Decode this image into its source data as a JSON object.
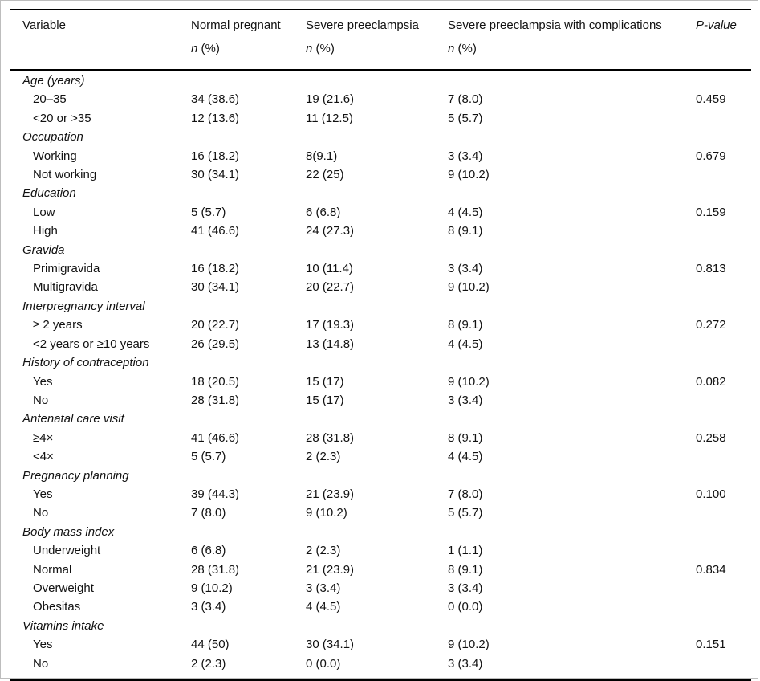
{
  "table": {
    "headers": [
      "Variable",
      "Normal pregnant",
      "Severe preeclampsia",
      "Severe preeclampsia with complications",
      "P-value"
    ],
    "subheader": {
      "n": "n",
      "pct": " (%)"
    },
    "groups": [
      {
        "label": "Age (years)",
        "rows": [
          {
            "label": "20–35",
            "normal": "34 (38.6)",
            "severe": "19 (21.6)",
            "comp": "7 (8.0)",
            "p": "0.459"
          },
          {
            "label": "<20 or >35",
            "normal": "12 (13.6)",
            "severe": "11 (12.5)",
            "comp": "5 (5.7)",
            "p": ""
          }
        ]
      },
      {
        "label": "Occupation",
        "rows": [
          {
            "label": "Working",
            "normal": "16 (18.2)",
            "severe": "8(9.1)",
            "comp": "3 (3.4)",
            "p": "0.679"
          },
          {
            "label": "Not working",
            "normal": "30 (34.1)",
            "severe": "22 (25)",
            "comp": "9 (10.2)",
            "p": ""
          }
        ]
      },
      {
        "label": "Education",
        "rows": [
          {
            "label": "Low",
            "normal": "5 (5.7)",
            "severe": "6 (6.8)",
            "comp": "4 (4.5)",
            "p": "0.159"
          },
          {
            "label": "High",
            "normal": "41 (46.6)",
            "severe": "24 (27.3)",
            "comp": "8 (9.1)",
            "p": ""
          }
        ]
      },
      {
        "label": "Gravida",
        "rows": [
          {
            "label": "Primigravida",
            "normal": "16 (18.2)",
            "severe": "10 (11.4)",
            "comp": "3 (3.4)",
            "p": "0.813"
          },
          {
            "label": "Multigravida",
            "normal": "30 (34.1)",
            "severe": "20 (22.7)",
            "comp": "9 (10.2)",
            "p": ""
          }
        ]
      },
      {
        "label": "Interpregnancy interval",
        "rows": [
          {
            "label": "≥ 2 years",
            "normal": "20 (22.7)",
            "severe": "17 (19.3)",
            "comp": "8 (9.1)",
            "p": "0.272"
          },
          {
            "label": "<2 years or ≥10 years",
            "normal": "26 (29.5)",
            "severe": "13 (14.8)",
            "comp": "4 (4.5)",
            "p": ""
          }
        ]
      },
      {
        "label": "History of contraception",
        "rows": [
          {
            "label": "Yes",
            "normal": "18 (20.5)",
            "severe": "15 (17)",
            "comp": "9 (10.2)",
            "p": "0.082"
          },
          {
            "label": "No",
            "normal": "28 (31.8)",
            "severe": "15 (17)",
            "comp": "3 (3.4)",
            "p": ""
          }
        ]
      },
      {
        "label": "Antenatal care visit",
        "rows": [
          {
            "label": "≥4×",
            "normal": "41 (46.6)",
            "severe": "28 (31.8)",
            "comp": "8 (9.1)",
            "p": "0.258"
          },
          {
            "label": "<4×",
            "normal": "5 (5.7)",
            "severe": "2 (2.3)",
            "comp": "4 (4.5)",
            "p": ""
          }
        ]
      },
      {
        "label": "Pregnancy planning",
        "rows": [
          {
            "label": "Yes",
            "normal": "39 (44.3)",
            "severe": "21 (23.9)",
            "comp": "7 (8.0)",
            "p": "0.100"
          },
          {
            "label": "No",
            "normal": "7 (8.0)",
            "severe": "9 (10.2)",
            "comp": "5 (5.7)",
            "p": ""
          }
        ]
      },
      {
        "label": "Body mass index",
        "rows": [
          {
            "label": "Underweight",
            "normal": "6 (6.8)",
            "severe": "2 (2.3)",
            "comp": "1 (1.1)",
            "p": ""
          },
          {
            "label": "Normal",
            "normal": "28 (31.8)",
            "severe": "21 (23.9)",
            "comp": "8 (9.1)",
            "p": "0.834"
          },
          {
            "label": "Overweight",
            "normal": "9 (10.2)",
            "severe": "3 (3.4)",
            "comp": "3 (3.4)",
            "p": ""
          },
          {
            "label": "Obesitas",
            "normal": "3 (3.4)",
            "severe": "4 (4.5)",
            "comp": "0 (0.0)",
            "p": ""
          }
        ]
      },
      {
        "label": "Vitamins intake",
        "rows": [
          {
            "label": "Yes",
            "normal": "44 (50)",
            "severe": "30 (34.1)",
            "comp": "9 (10.2)",
            "p": "0.151"
          },
          {
            "label": "No",
            "normal": "2 (2.3)",
            "severe": "0 (0.0)",
            "comp": "3 (3.4)",
            "p": ""
          }
        ]
      }
    ]
  },
  "colors": {
    "text": "#111111",
    "rule": "#000000",
    "frame": "#bdbdbd",
    "background": "#ffffff"
  }
}
